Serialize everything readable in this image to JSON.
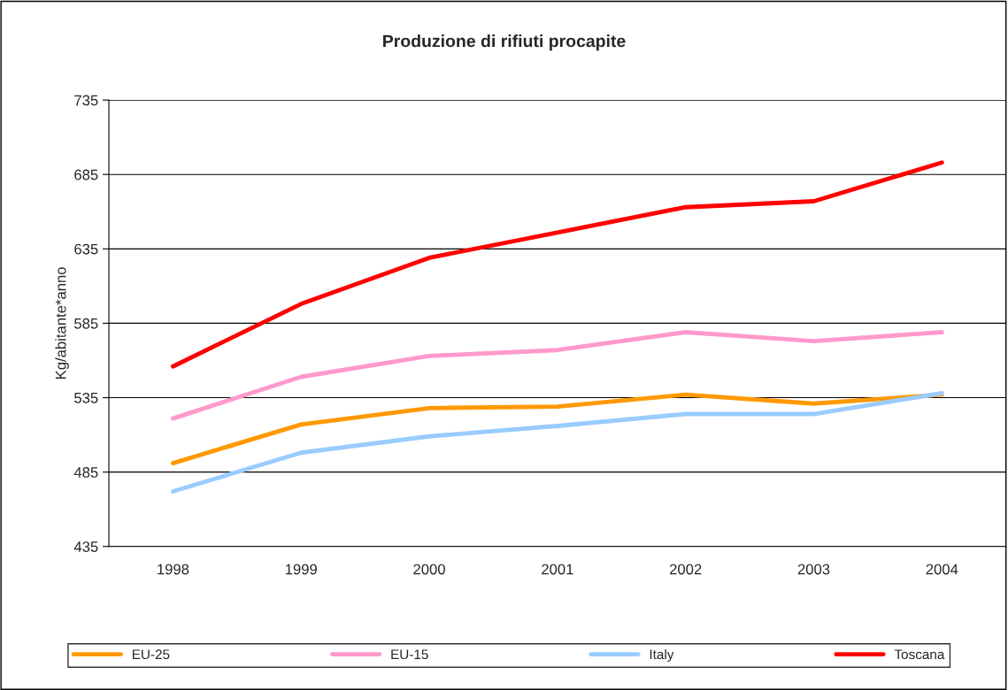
{
  "chart_data": {
    "type": "line",
    "title": "Produzione di rifiuti procapite",
    "ylabel": "Kg/abitante*anno",
    "categories": [
      "1998",
      "1999",
      "2000",
      "2001",
      "2002",
      "2003",
      "2004"
    ],
    "series": [
      {
        "name": "EU-25",
        "color": "#ff9900",
        "values": [
          491,
          517,
          528,
          529,
          537,
          531,
          537
        ]
      },
      {
        "name": "EU-15",
        "color": "#ff99cc",
        "values": [
          521,
          549,
          563,
          567,
          579,
          573,
          579
        ]
      },
      {
        "name": "Italy",
        "color": "#99ccff",
        "values": [
          472,
          498,
          509,
          516,
          524,
          524,
          538
        ]
      },
      {
        "name": "Toscana",
        "color": "#ff0000",
        "values": [
          556,
          598,
          629,
          646,
          663,
          667,
          693
        ]
      }
    ],
    "ylim": [
      435,
      735
    ],
    "yticks": [
      435,
      485,
      535,
      585,
      635,
      685,
      735
    ],
    "grid": "y",
    "legend": "bottom",
    "marker": "none",
    "line_style": "solid"
  }
}
